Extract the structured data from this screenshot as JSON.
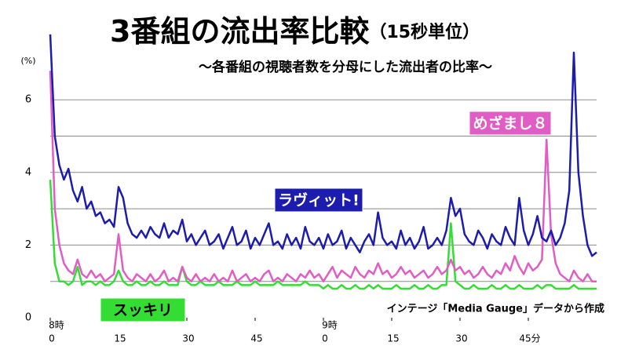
{
  "chart_data": {
    "type": "line",
    "title": "3番組の流出率比較",
    "title_note": "（15秒単位）",
    "subtitle": "～各番組の視聴者数を分母にした流出者の比率～",
    "y_unit": "(%)",
    "source": "インテージ「Media Gauge」データから作成",
    "xlim": [
      0,
      120
    ],
    "xticks": [
      0,
      15,
      30,
      45,
      {
        "value": 60,
        "label": "0"
      },
      {
        "value": 75,
        "label": "15"
      },
      {
        "value": 90,
        "label": "30"
      },
      {
        "value": 105,
        "label": "45分"
      }
    ],
    "hour_labels": [
      {
        "value": 0,
        "label": "8時"
      },
      {
        "value": 60,
        "label": "9時"
      }
    ],
    "ylim": [
      0,
      7.3
    ],
    "yticks": [
      0,
      2,
      4,
      6
    ],
    "minor_yticks": [
      1,
      3,
      5
    ],
    "grid": true,
    "x": [
      0,
      1,
      2,
      3,
      4,
      5,
      6,
      7,
      8,
      9,
      10,
      11,
      12,
      13,
      14,
      15,
      16,
      17,
      18,
      19,
      20,
      21,
      22,
      23,
      24,
      25,
      26,
      27,
      28,
      29,
      30,
      31,
      32,
      33,
      34,
      35,
      36,
      37,
      38,
      39,
      40,
      41,
      42,
      43,
      44,
      45,
      46,
      47,
      48,
      49,
      50,
      51,
      52,
      53,
      54,
      55,
      56,
      57,
      58,
      59,
      60,
      61,
      62,
      63,
      64,
      65,
      66,
      67,
      68,
      69,
      70,
      71,
      72,
      73,
      74,
      75,
      76,
      77,
      78,
      79,
      80,
      81,
      82,
      83,
      84,
      85,
      86,
      87,
      88,
      89,
      90,
      91,
      92,
      93,
      94,
      95,
      96,
      97,
      98,
      99,
      100,
      101,
      102,
      103,
      104,
      105,
      106,
      107,
      108,
      109,
      110,
      111,
      112,
      113,
      114,
      115,
      116,
      117,
      118,
      119,
      120
    ],
    "series": [
      {
        "name": "ラヴィット!",
        "color": "#1c1cae",
        "values": [
          7.8,
          5.0,
          4.2,
          3.8,
          4.1,
          3.5,
          3.2,
          3.6,
          3.0,
          3.2,
          2.8,
          2.9,
          2.6,
          2.7,
          2.5,
          3.6,
          3.3,
          2.6,
          2.3,
          2.2,
          2.4,
          2.2,
          2.5,
          2.3,
          2.2,
          2.6,
          2.2,
          2.4,
          2.3,
          2.7,
          2.1,
          2.3,
          2.0,
          2.2,
          2.4,
          2.0,
          2.1,
          2.3,
          1.9,
          2.2,
          2.5,
          2.0,
          2.1,
          2.4,
          1.9,
          2.2,
          2.0,
          2.3,
          2.6,
          2.0,
          2.1,
          1.9,
          2.3,
          2.0,
          2.2,
          1.9,
          2.5,
          2.1,
          2.0,
          2.2,
          1.9,
          2.3,
          2.0,
          2.1,
          2.4,
          1.9,
          2.2,
          2.0,
          1.8,
          2.1,
          2.3,
          2.0,
          2.9,
          2.2,
          2.0,
          2.1,
          1.9,
          2.4,
          2.0,
          2.2,
          1.9,
          2.1,
          2.5,
          1.9,
          2.0,
          2.2,
          2.0,
          2.4,
          3.3,
          2.8,
          3.0,
          2.3,
          2.1,
          2.0,
          2.4,
          2.2,
          1.9,
          2.3,
          2.1,
          2.0,
          2.5,
          2.2,
          2.0,
          3.3,
          2.4,
          2.0,
          2.3,
          2.8,
          2.2,
          2.1,
          2.4,
          2.0,
          2.2,
          2.6,
          3.5,
          7.3,
          4.0,
          2.8,
          2.0,
          1.7,
          1.8
        ]
      },
      {
        "name": "めざまし８",
        "color": "#e25cc6",
        "values": [
          6.8,
          3.0,
          2.0,
          1.5,
          1.3,
          1.2,
          1.6,
          1.2,
          1.1,
          1.3,
          1.1,
          1.2,
          1.0,
          1.1,
          1.2,
          2.3,
          1.3,
          1.1,
          1.0,
          1.2,
          1.1,
          1.0,
          1.2,
          1.0,
          1.1,
          1.3,
          1.0,
          1.1,
          1.0,
          1.4,
          1.1,
          1.0,
          1.2,
          1.0,
          1.1,
          1.0,
          1.2,
          1.0,
          1.1,
          1.0,
          1.3,
          1.0,
          1.1,
          1.2,
          1.0,
          1.1,
          1.0,
          1.2,
          1.3,
          1.0,
          1.1,
          1.0,
          1.2,
          1.1,
          1.0,
          1.2,
          1.1,
          1.3,
          1.1,
          1.2,
          1.0,
          1.2,
          1.4,
          1.1,
          1.3,
          1.2,
          1.1,
          1.4,
          1.2,
          1.1,
          1.3,
          1.2,
          1.5,
          1.2,
          1.3,
          1.1,
          1.2,
          1.4,
          1.2,
          1.3,
          1.1,
          1.2,
          1.3,
          1.1,
          1.2,
          1.4,
          1.2,
          1.3,
          1.6,
          1.3,
          1.4,
          1.2,
          1.3,
          1.1,
          1.2,
          1.4,
          1.2,
          1.1,
          1.3,
          1.2,
          1.5,
          1.3,
          1.7,
          1.4,
          1.2,
          1.5,
          1.3,
          1.4,
          1.6,
          4.9,
          2.3,
          1.5,
          1.2,
          1.1,
          1.0,
          1.3,
          1.1,
          1.0,
          1.2,
          1.0,
          1.0
        ]
      },
      {
        "name": "スッキリ",
        "color": "#33dd33",
        "values": [
          3.8,
          1.5,
          1.0,
          1.0,
          0.9,
          1.0,
          1.4,
          0.9,
          1.0,
          1.0,
          0.9,
          1.0,
          0.9,
          0.9,
          1.0,
          1.3,
          1.0,
          0.9,
          0.9,
          1.0,
          0.9,
          0.9,
          1.0,
          0.9,
          0.9,
          1.0,
          0.9,
          0.9,
          0.9,
          1.4,
          1.0,
          0.9,
          0.9,
          1.0,
          0.9,
          0.9,
          0.9,
          1.0,
          0.9,
          0.9,
          0.9,
          1.0,
          0.9,
          0.9,
          0.9,
          1.0,
          0.9,
          0.9,
          0.9,
          0.9,
          1.0,
          0.9,
          0.9,
          0.9,
          0.9,
          0.9,
          1.0,
          0.9,
          0.9,
          0.9,
          0.8,
          0.9,
          0.8,
          0.8,
          0.9,
          0.8,
          0.8,
          0.9,
          0.8,
          0.8,
          0.9,
          0.8,
          0.9,
          0.8,
          0.8,
          0.8,
          0.9,
          0.8,
          0.8,
          0.8,
          0.9,
          0.8,
          0.8,
          0.9,
          0.8,
          0.8,
          0.9,
          0.9,
          2.6,
          1.0,
          0.9,
          0.8,
          0.8,
          0.9,
          0.8,
          0.8,
          0.8,
          0.9,
          0.8,
          0.8,
          0.9,
          0.8,
          0.8,
          0.9,
          0.8,
          0.8,
          0.8,
          0.9,
          0.8,
          0.9,
          0.9,
          0.8,
          0.8,
          0.8,
          0.8,
          0.9,
          0.8,
          0.8,
          0.8,
          0.8,
          0.8
        ]
      }
    ]
  }
}
